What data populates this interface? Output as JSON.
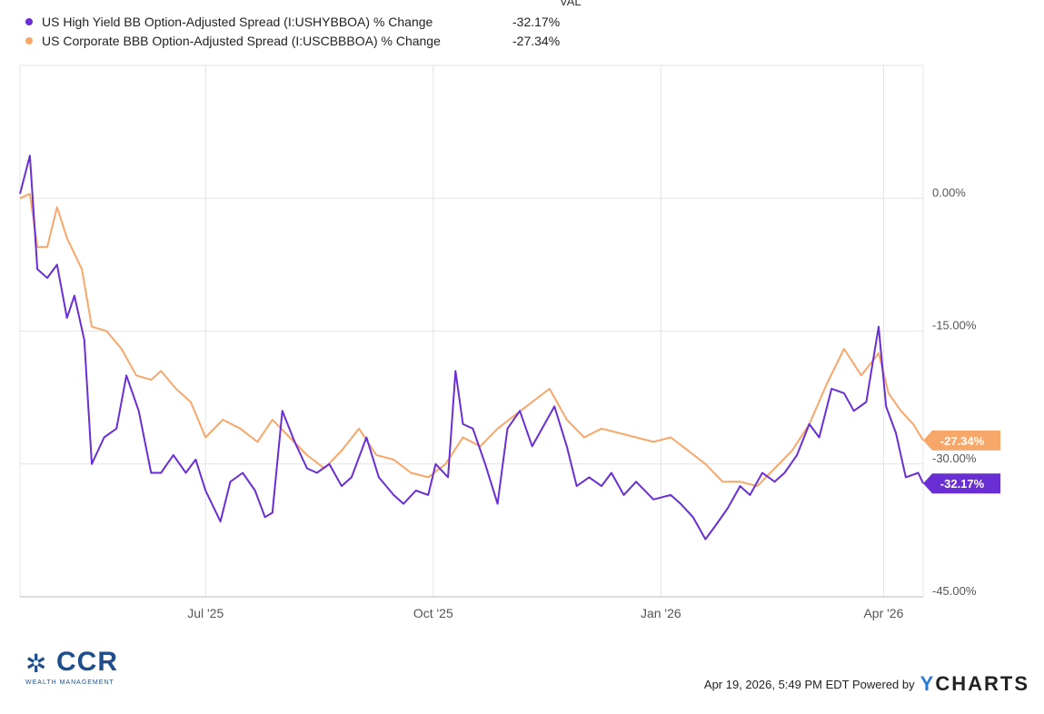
{
  "legend": {
    "header": "VAL",
    "items": [
      {
        "name": "US High Yield BB Option-Adjusted Spread (I:USHYBBOA) % Change",
        "value": "-32.17%",
        "color": "#6a2fd4"
      },
      {
        "name": "US Corporate BBB Option-Adjusted Spread (I:USCBBBOA) % Change",
        "value": "-27.34%",
        "color": "#f8a76b"
      }
    ]
  },
  "footer": {
    "logo_text": "CCR",
    "logo_sub": "WEALTH MANAGEMENT",
    "timestamp": "Apr 19, 2026, 5:49 PM EDT Powered by",
    "brand_y": "Y",
    "brand_rest": "CHARTS"
  },
  "chart_data": {
    "type": "line",
    "x_ticks": [
      {
        "label": "Jul '25",
        "x": "2025-07-01"
      },
      {
        "label": "Oct '25",
        "x": "2025-10-01"
      },
      {
        "label": "Jan '26",
        "x": "2026-01-01"
      },
      {
        "label": "Apr '26",
        "x": "2026-04-01"
      }
    ],
    "xlim": [
      "2025-04-17",
      "2026-04-17"
    ],
    "ylim": [
      -45,
      15
    ],
    "y_ticks": [
      {
        "value": 0,
        "label": "0.00%"
      },
      {
        "value": -15,
        "label": "-15.00%"
      },
      {
        "value": -30,
        "label": "-30.00%"
      },
      {
        "value": -45,
        "label": "-45.00%"
      }
    ],
    "grid": true,
    "series": [
      {
        "name": "US High Yield BB Option-Adjusted Spread (I:USHYBBOA) % Change",
        "color": "#6a2fd4",
        "end_label": "-32.17%",
        "x": [
          "2025-04-17",
          "2025-04-21",
          "2025-04-24",
          "2025-04-28",
          "2025-05-02",
          "2025-05-06",
          "2025-05-09",
          "2025-05-13",
          "2025-05-16",
          "2025-05-21",
          "2025-05-26",
          "2025-05-30",
          "2025-06-04",
          "2025-06-09",
          "2025-06-13",
          "2025-06-18",
          "2025-06-23",
          "2025-06-27",
          "2025-07-01",
          "2025-07-07",
          "2025-07-11",
          "2025-07-16",
          "2025-07-21",
          "2025-07-25",
          "2025-07-28",
          "2025-08-01",
          "2025-08-06",
          "2025-08-11",
          "2025-08-15",
          "2025-08-20",
          "2025-08-25",
          "2025-08-29",
          "2025-09-04",
          "2025-09-09",
          "2025-09-15",
          "2025-09-19",
          "2025-09-24",
          "2025-09-29",
          "2025-10-02",
          "2025-10-07",
          "2025-10-10",
          "2025-10-13",
          "2025-10-17",
          "2025-10-22",
          "2025-10-27",
          "2025-10-31",
          "2025-11-05",
          "2025-11-10",
          "2025-11-14",
          "2025-11-19",
          "2025-11-24",
          "2025-11-28",
          "2025-12-03",
          "2025-12-08",
          "2025-12-12",
          "2025-12-17",
          "2025-12-22",
          "2025-12-29",
          "2026-01-05",
          "2026-01-09",
          "2026-01-14",
          "2026-01-19",
          "2026-01-23",
          "2026-01-28",
          "2026-02-02",
          "2026-02-06",
          "2026-02-11",
          "2026-02-16",
          "2026-02-20",
          "2026-02-25",
          "2026-03-02",
          "2026-03-06",
          "2026-03-11",
          "2026-03-16",
          "2026-03-20",
          "2026-03-25",
          "2026-03-30",
          "2026-04-02",
          "2026-04-06",
          "2026-04-10",
          "2026-04-15",
          "2026-04-17"
        ],
        "values": [
          0.5,
          4.8,
          -8,
          -9,
          -7.5,
          -13.5,
          -11,
          -16,
          -30,
          -27,
          -26,
          -20,
          -24,
          -31,
          -31,
          -29,
          -31,
          -29.5,
          -33,
          -36.5,
          -32,
          -31,
          -33,
          -36,
          -35.5,
          -24,
          -27.5,
          -30.5,
          -31,
          -30,
          -32.5,
          -31.5,
          -27,
          -31.5,
          -33.5,
          -34.5,
          -33,
          -33.5,
          -30,
          -31.5,
          -19.5,
          -25.5,
          -26,
          -30,
          -34.5,
          -26,
          -24,
          -28,
          -26,
          -23.5,
          -28,
          -32.5,
          -31.5,
          -32.5,
          -31,
          -33.5,
          -32,
          -34,
          -33.5,
          -34.5,
          -36,
          -38.5,
          -37,
          -35,
          -32.5,
          -33.5,
          -31,
          -32,
          -31,
          -29,
          -25.5,
          -27,
          -21.5,
          -22,
          -24,
          -23,
          -14.5,
          -23.5,
          -26.5,
          -31.5,
          -31,
          -32.2
        ]
      },
      {
        "name": "US Corporate BBB Option-Adjusted Spread (I:USCBBBOA) % Change",
        "color": "#f8a76b",
        "end_label": "-27.34%",
        "x": [
          "2025-04-17",
          "2025-04-21",
          "2025-04-24",
          "2025-04-28",
          "2025-05-02",
          "2025-05-06",
          "2025-05-12",
          "2025-05-16",
          "2025-05-22",
          "2025-05-28",
          "2025-06-03",
          "2025-06-09",
          "2025-06-13",
          "2025-06-19",
          "2025-06-25",
          "2025-07-01",
          "2025-07-08",
          "2025-07-15",
          "2025-07-22",
          "2025-07-28",
          "2025-08-04",
          "2025-08-11",
          "2025-08-18",
          "2025-08-25",
          "2025-09-01",
          "2025-09-08",
          "2025-09-15",
          "2025-09-22",
          "2025-09-29",
          "2025-10-06",
          "2025-10-13",
          "2025-10-20",
          "2025-10-27",
          "2025-11-03",
          "2025-11-10",
          "2025-11-17",
          "2025-11-24",
          "2025-12-01",
          "2025-12-08",
          "2025-12-15",
          "2025-12-22",
          "2025-12-29",
          "2026-01-05",
          "2026-01-12",
          "2026-01-19",
          "2026-01-26",
          "2026-02-02",
          "2026-02-09",
          "2026-02-16",
          "2026-02-23",
          "2026-03-02",
          "2026-03-09",
          "2026-03-16",
          "2026-03-23",
          "2026-03-30",
          "2026-04-03",
          "2026-04-08",
          "2026-04-13",
          "2026-04-17"
        ],
        "values": [
          0,
          0.5,
          -5.5,
          -5.5,
          -1,
          -4.5,
          -8,
          -14.5,
          -15,
          -17,
          -20,
          -20.5,
          -19.5,
          -21.5,
          -23,
          -27,
          -25,
          -26,
          -27.5,
          -25,
          -27,
          -29,
          -30.5,
          -28.5,
          -26,
          -29,
          -29.5,
          -31,
          -31.5,
          -30,
          -27,
          -28,
          -26,
          -24.5,
          -23,
          -21.5,
          -25,
          -27,
          -26,
          -26.5,
          -27,
          -27.5,
          -27,
          -28.5,
          -30,
          -32,
          -32,
          -32.5,
          -30.5,
          -28.5,
          -25.5,
          -21,
          -17,
          -20,
          -17.5,
          -22,
          -24,
          -25.5,
          -27.34
        ]
      }
    ]
  }
}
